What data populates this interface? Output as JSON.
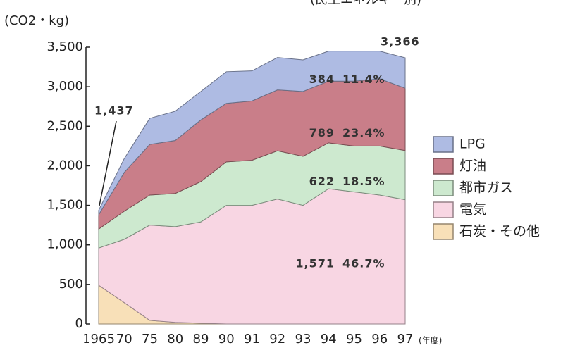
{
  "chart_data": {
    "type": "stacked_area",
    "subtitle": "(民生エネルギー別)",
    "y_label": "(CO2・kg)",
    "x_label": "(年度)",
    "categories": [
      "1965",
      "70",
      "75",
      "80",
      "89",
      "90",
      "91",
      "92",
      "93",
      "94",
      "95",
      "96",
      "97"
    ],
    "series": [
      {
        "name": "LPG",
        "color": "#aebbe3",
        "share": "11.4%",
        "values": [
          57,
          175,
          330,
          370,
          360,
          400,
          380,
          410,
          400,
          380,
          380,
          350,
          384
        ]
      },
      {
        "name": "灯油",
        "color": "#c97e89",
        "share": "23.4%",
        "values": [
          180,
          490,
          640,
          670,
          780,
          740,
          750,
          770,
          820,
          780,
          820,
          850,
          789
        ]
      },
      {
        "name": "都市ガス",
        "color": "#cde9cf",
        "share": "18.5%",
        "values": [
          240,
          355,
          380,
          420,
          510,
          550,
          570,
          610,
          620,
          580,
          580,
          620,
          622
        ]
      },
      {
        "name": "電気",
        "color": "#f8d6e3",
        "share": "46.7%",
        "values": [
          470,
          800,
          1205,
          1210,
          1280,
          1500,
          1500,
          1580,
          1500,
          1710,
          1670,
          1630,
          1571
        ],
        "value_labels": [
          null,
          null,
          null,
          null,
          null,
          null,
          null,
          null,
          null,
          null,
          null,
          null,
          "1,571"
        ]
      },
      {
        "name": "石炭・その他",
        "color": "#f8e0b8",
        "values": [
          490,
          270,
          45,
          20,
          10,
          0,
          0,
          0,
          0,
          0,
          0,
          0,
          0
        ]
      }
    ],
    "annotations": [
      {
        "text": "1,437"
      },
      {
        "text": "3,366"
      }
    ],
    "ylim": [
      0,
      3500
    ],
    "yticks": [
      0,
      500,
      {
        "value": 1000,
        "label": "1,000"
      },
      {
        "value": 1500,
        "label": "1,500"
      },
      {
        "value": 2000,
        "label": "2,000"
      },
      {
        "value": 2500,
        "label": "2,500"
      },
      {
        "value": 3000,
        "label": "3,000"
      },
      {
        "value": 3500,
        "label": "3,500"
      }
    ],
    "legend": "right"
  }
}
